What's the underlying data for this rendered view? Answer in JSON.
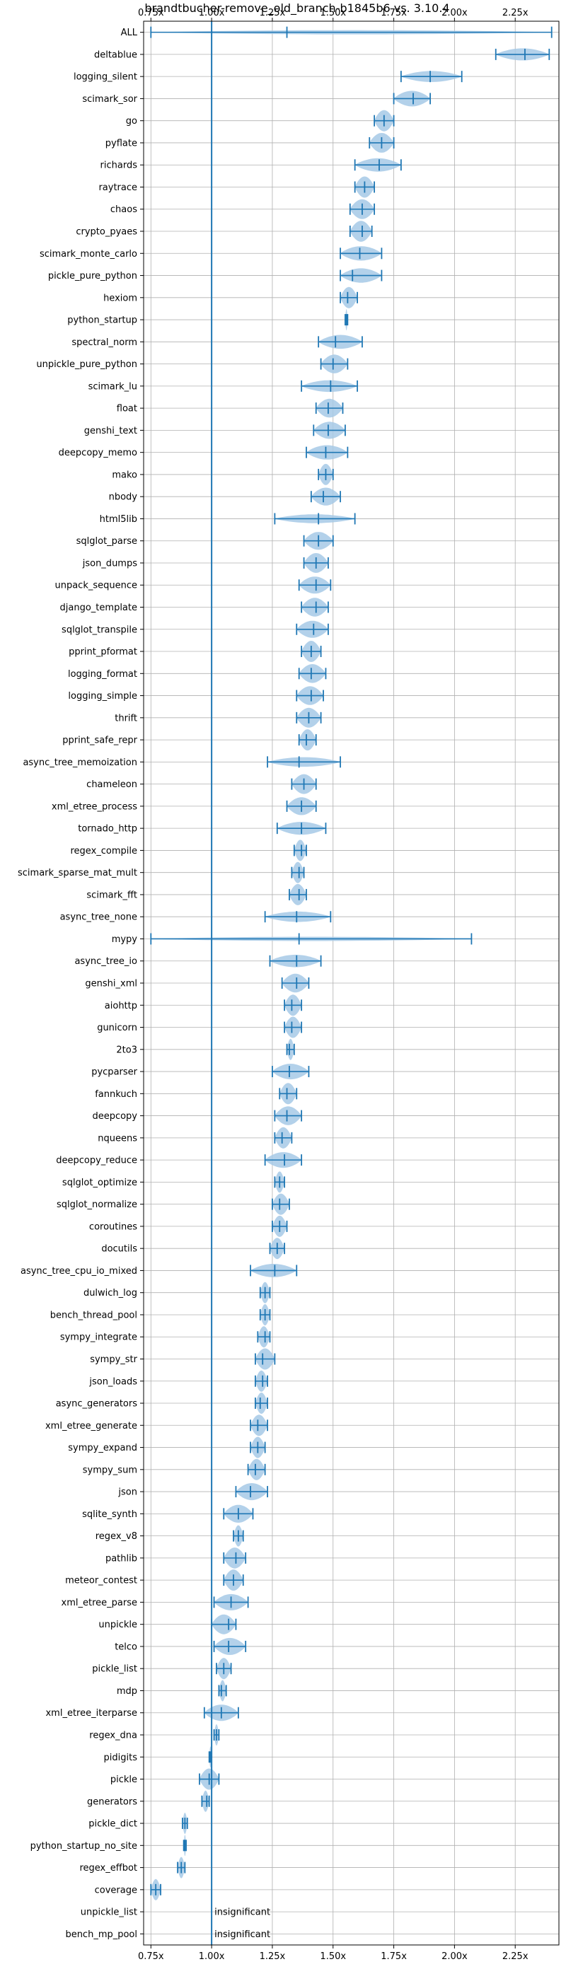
{
  "chart_data": {
    "type": "violin",
    "title": "brandtbucher-remove_old_branch-b1845b6 vs. 3.10.4",
    "xlabel": "",
    "ylabel": "",
    "xlim": [
      0.72,
      2.43
    ],
    "x_ticks": [
      0.75,
      1.0,
      1.25,
      1.5,
      1.75,
      2.0,
      2.25
    ],
    "x_tick_labels": [
      "0.75x",
      "1.00x",
      "1.25x",
      "1.50x",
      "1.75x",
      "2.00x",
      "2.25x"
    ],
    "tick_positions": "top-and-bottom",
    "grid": true,
    "reference_line": 1.0,
    "colors": {
      "violin_fill": "#a6c9e6",
      "line": "#1f77b4",
      "grid": "#b0b0b0"
    },
    "benchmarks": [
      {
        "name": "ALL",
        "min": 0.75,
        "mean": 1.31,
        "max": 2.4
      },
      {
        "name": "deltablue",
        "min": 2.17,
        "mean": 2.29,
        "max": 2.39
      },
      {
        "name": "logging_silent",
        "min": 1.78,
        "mean": 1.9,
        "max": 2.03
      },
      {
        "name": "scimark_sor",
        "min": 1.75,
        "mean": 1.83,
        "max": 1.9
      },
      {
        "name": "go",
        "min": 1.67,
        "mean": 1.71,
        "max": 1.75
      },
      {
        "name": "pyflate",
        "min": 1.65,
        "mean": 1.7,
        "max": 1.75
      },
      {
        "name": "richards",
        "min": 1.59,
        "mean": 1.69,
        "max": 1.78
      },
      {
        "name": "raytrace",
        "min": 1.59,
        "mean": 1.63,
        "max": 1.67
      },
      {
        "name": "chaos",
        "min": 1.57,
        "mean": 1.62,
        "max": 1.67
      },
      {
        "name": "crypto_pyaes",
        "min": 1.57,
        "mean": 1.62,
        "max": 1.66
      },
      {
        "name": "scimark_monte_carlo",
        "min": 1.53,
        "mean": 1.61,
        "max": 1.7
      },
      {
        "name": "pickle_pure_python",
        "min": 1.53,
        "mean": 1.58,
        "max": 1.7
      },
      {
        "name": "hexiom",
        "min": 1.53,
        "mean": 1.56,
        "max": 1.6
      },
      {
        "name": "python_startup",
        "min": 1.55,
        "mean": 1.555,
        "max": 1.56
      },
      {
        "name": "spectral_norm",
        "min": 1.44,
        "mean": 1.51,
        "max": 1.62
      },
      {
        "name": "unpickle_pure_python",
        "min": 1.45,
        "mean": 1.5,
        "max": 1.56
      },
      {
        "name": "scimark_lu",
        "min": 1.37,
        "mean": 1.49,
        "max": 1.6
      },
      {
        "name": "float",
        "min": 1.43,
        "mean": 1.48,
        "max": 1.54
      },
      {
        "name": "genshi_text",
        "min": 1.42,
        "mean": 1.48,
        "max": 1.55
      },
      {
        "name": "deepcopy_memo",
        "min": 1.39,
        "mean": 1.47,
        "max": 1.56
      },
      {
        "name": "mako",
        "min": 1.44,
        "mean": 1.47,
        "max": 1.5
      },
      {
        "name": "nbody",
        "min": 1.41,
        "mean": 1.46,
        "max": 1.53
      },
      {
        "name": "html5lib",
        "min": 1.26,
        "mean": 1.44,
        "max": 1.59
      },
      {
        "name": "sqlglot_parse",
        "min": 1.38,
        "mean": 1.44,
        "max": 1.5
      },
      {
        "name": "json_dumps",
        "min": 1.38,
        "mean": 1.43,
        "max": 1.48
      },
      {
        "name": "unpack_sequence",
        "min": 1.36,
        "mean": 1.43,
        "max": 1.49
      },
      {
        "name": "django_template",
        "min": 1.37,
        "mean": 1.43,
        "max": 1.48
      },
      {
        "name": "sqlglot_transpile",
        "min": 1.35,
        "mean": 1.42,
        "max": 1.48
      },
      {
        "name": "pprint_pformat",
        "min": 1.37,
        "mean": 1.41,
        "max": 1.45
      },
      {
        "name": "logging_format",
        "min": 1.36,
        "mean": 1.41,
        "max": 1.47
      },
      {
        "name": "logging_simple",
        "min": 1.35,
        "mean": 1.41,
        "max": 1.46
      },
      {
        "name": "thrift",
        "min": 1.35,
        "mean": 1.4,
        "max": 1.45
      },
      {
        "name": "pprint_safe_repr",
        "min": 1.36,
        "mean": 1.39,
        "max": 1.43
      },
      {
        "name": "async_tree_memoization",
        "min": 1.23,
        "mean": 1.36,
        "max": 1.53
      },
      {
        "name": "chameleon",
        "min": 1.33,
        "mean": 1.38,
        "max": 1.43
      },
      {
        "name": "xml_etree_process",
        "min": 1.31,
        "mean": 1.37,
        "max": 1.43
      },
      {
        "name": "tornado_http",
        "min": 1.27,
        "mean": 1.37,
        "max": 1.47
      },
      {
        "name": "regex_compile",
        "min": 1.34,
        "mean": 1.37,
        "max": 1.39
      },
      {
        "name": "scimark_sparse_mat_mult",
        "min": 1.33,
        "mean": 1.36,
        "max": 1.38
      },
      {
        "name": "scimark_fft",
        "min": 1.32,
        "mean": 1.36,
        "max": 1.39
      },
      {
        "name": "async_tree_none",
        "min": 1.22,
        "mean": 1.35,
        "max": 1.49
      },
      {
        "name": "mypy",
        "min": 0.75,
        "mean": 1.36,
        "max": 2.07
      },
      {
        "name": "async_tree_io",
        "min": 1.24,
        "mean": 1.35,
        "max": 1.45
      },
      {
        "name": "genshi_xml",
        "min": 1.29,
        "mean": 1.35,
        "max": 1.4
      },
      {
        "name": "aiohttp",
        "min": 1.3,
        "mean": 1.33,
        "max": 1.37
      },
      {
        "name": "gunicorn",
        "min": 1.3,
        "mean": 1.33,
        "max": 1.37
      },
      {
        "name": "2to3",
        "min": 1.31,
        "mean": 1.32,
        "max": 1.34
      },
      {
        "name": "pycparser",
        "min": 1.25,
        "mean": 1.32,
        "max": 1.4
      },
      {
        "name": "fannkuch",
        "min": 1.28,
        "mean": 1.31,
        "max": 1.35
      },
      {
        "name": "deepcopy",
        "min": 1.26,
        "mean": 1.31,
        "max": 1.37
      },
      {
        "name": "nqueens",
        "min": 1.26,
        "mean": 1.29,
        "max": 1.33
      },
      {
        "name": "deepcopy_reduce",
        "min": 1.22,
        "mean": 1.3,
        "max": 1.37
      },
      {
        "name": "sqlglot_optimize",
        "min": 1.26,
        "mean": 1.28,
        "max": 1.3
      },
      {
        "name": "sqlglot_normalize",
        "min": 1.25,
        "mean": 1.28,
        "max": 1.32
      },
      {
        "name": "coroutines",
        "min": 1.25,
        "mean": 1.28,
        "max": 1.31
      },
      {
        "name": "docutils",
        "min": 1.24,
        "mean": 1.27,
        "max": 1.3
      },
      {
        "name": "async_tree_cpu_io_mixed",
        "min": 1.16,
        "mean": 1.26,
        "max": 1.35
      },
      {
        "name": "dulwich_log",
        "min": 1.2,
        "mean": 1.22,
        "max": 1.24
      },
      {
        "name": "bench_thread_pool",
        "min": 1.2,
        "mean": 1.22,
        "max": 1.24
      },
      {
        "name": "sympy_integrate",
        "min": 1.19,
        "mean": 1.22,
        "max": 1.24
      },
      {
        "name": "sympy_str",
        "min": 1.18,
        "mean": 1.21,
        "max": 1.26
      },
      {
        "name": "json_loads",
        "min": 1.18,
        "mean": 1.21,
        "max": 1.23
      },
      {
        "name": "async_generators",
        "min": 1.18,
        "mean": 1.2,
        "max": 1.23
      },
      {
        "name": "xml_etree_generate",
        "min": 1.16,
        "mean": 1.19,
        "max": 1.23
      },
      {
        "name": "sympy_expand",
        "min": 1.16,
        "mean": 1.19,
        "max": 1.22
      },
      {
        "name": "sympy_sum",
        "min": 1.15,
        "mean": 1.18,
        "max": 1.22
      },
      {
        "name": "json",
        "min": 1.1,
        "mean": 1.16,
        "max": 1.23
      },
      {
        "name": "sqlite_synth",
        "min": 1.05,
        "mean": 1.11,
        "max": 1.17
      },
      {
        "name": "regex_v8",
        "min": 1.09,
        "mean": 1.11,
        "max": 1.13
      },
      {
        "name": "pathlib",
        "min": 1.05,
        "mean": 1.1,
        "max": 1.14
      },
      {
        "name": "meteor_contest",
        "min": 1.05,
        "mean": 1.09,
        "max": 1.13
      },
      {
        "name": "xml_etree_parse",
        "min": 1.01,
        "mean": 1.08,
        "max": 1.15
      },
      {
        "name": "unpickle",
        "min": 1.0,
        "mean": 1.07,
        "max": 1.1
      },
      {
        "name": "telco",
        "min": 1.01,
        "mean": 1.07,
        "max": 1.14
      },
      {
        "name": "pickle_list",
        "min": 1.02,
        "mean": 1.05,
        "max": 1.08
      },
      {
        "name": "mdp",
        "min": 1.03,
        "mean": 1.04,
        "max": 1.06
      },
      {
        "name": "xml_etree_iterparse",
        "min": 0.97,
        "mean": 1.04,
        "max": 1.11
      },
      {
        "name": "regex_dna",
        "min": 1.01,
        "mean": 1.02,
        "max": 1.03
      },
      {
        "name": "pidigits",
        "min": 0.99,
        "mean": 0.995,
        "max": 1.0
      },
      {
        "name": "pickle",
        "min": 0.95,
        "mean": 0.99,
        "max": 1.03
      },
      {
        "name": "generators",
        "min": 0.96,
        "mean": 0.98,
        "max": 0.99
      },
      {
        "name": "pickle_dict",
        "min": 0.88,
        "mean": 0.89,
        "max": 0.9
      },
      {
        "name": "python_startup_no_site",
        "min": 0.885,
        "mean": 0.89,
        "max": 0.895
      },
      {
        "name": "regex_effbot",
        "min": 0.86,
        "mean": 0.875,
        "max": 0.89
      },
      {
        "name": "coverage",
        "min": 0.75,
        "mean": 0.77,
        "max": 0.79
      },
      {
        "name": "unpickle_list",
        "insignificant": true
      },
      {
        "name": "bench_mp_pool",
        "insignificant": true
      }
    ],
    "annotations": {
      "insignificant_label": "insignificant"
    }
  }
}
